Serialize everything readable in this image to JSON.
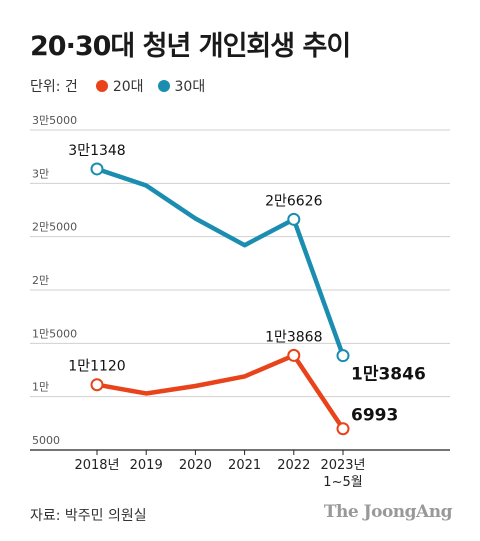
{
  "title": "20·30대 청년 개인회생 추이",
  "unit_label": "단위: 건",
  "source": "자료: 박주민 의원실",
  "logo": "The JoongAng",
  "colors": {
    "s20": "#e8431b",
    "s30": "#1a8db0",
    "grid": "#d0d0d0",
    "axis": "#222222"
  },
  "chart_data": {
    "type": "line",
    "title": "20·30대 청년 개인회생 추이",
    "x": [
      "2018년",
      "2019",
      "2020",
      "2021",
      "2022",
      "2023년\n1~5월"
    ],
    "ylim": [
      5000,
      35000
    ],
    "yticks": [
      {
        "value": 35000,
        "label": "3만5000"
      },
      {
        "value": 30000,
        "label": "3만"
      },
      {
        "value": 25000,
        "label": "2만5000"
      },
      {
        "value": 20000,
        "label": "2만"
      },
      {
        "value": 15000,
        "label": "1만5000"
      },
      {
        "value": 10000,
        "label": "1만"
      },
      {
        "value": 5000,
        "label": "5000"
      }
    ],
    "grid": true,
    "legend_position": "top-left",
    "series": [
      {
        "name": "20대",
        "color": "#e8431b",
        "values": [
          11120,
          10300,
          11000,
          11900,
          13868,
          6993
        ],
        "labels": [
          "1만1120",
          "",
          "",
          "",
          "1만3868",
          "6993"
        ]
      },
      {
        "name": "30대",
        "color": "#1a8db0",
        "values": [
          31348,
          29800,
          26700,
          24200,
          26626,
          13846
        ],
        "labels": [
          "3만1348",
          "",
          "",
          "",
          "2만6626",
          "1만3846"
        ]
      }
    ]
  }
}
